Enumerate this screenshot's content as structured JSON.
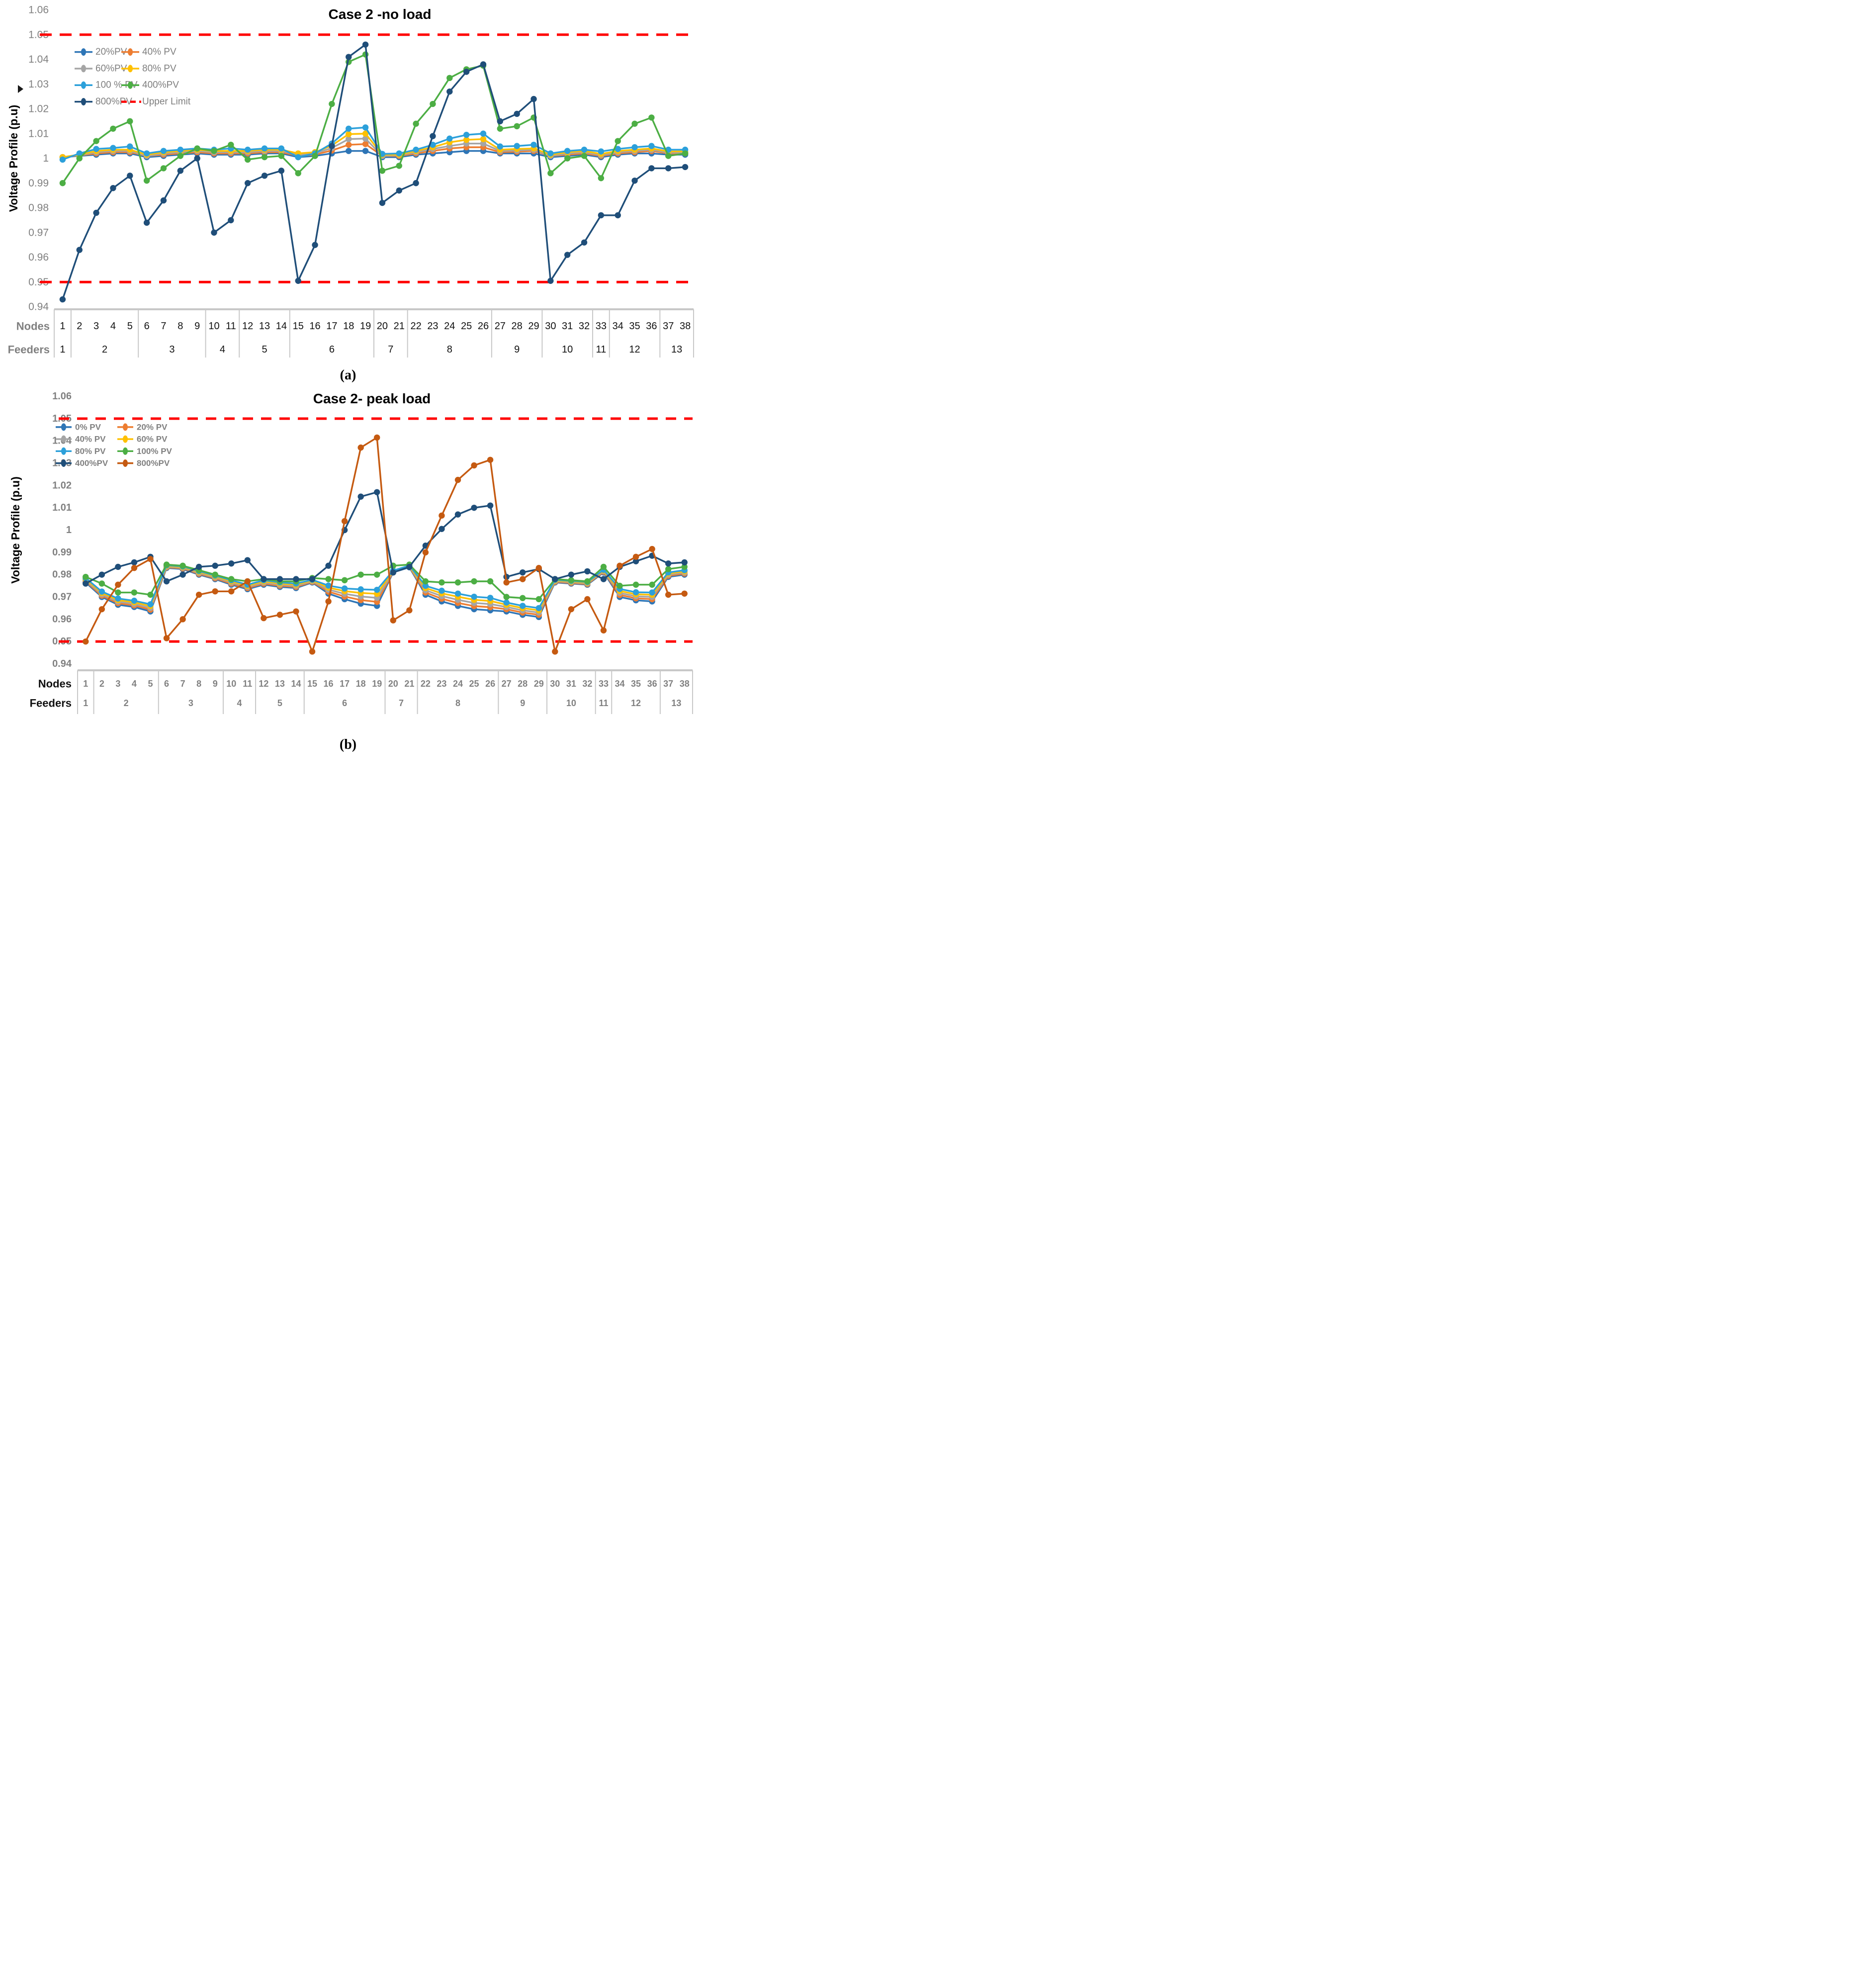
{
  "captions": {
    "a": "(a)",
    "b": "(b)"
  },
  "chart_data": [
    {
      "id": "case2-no-load",
      "type": "line",
      "title": "Case 2 -no load",
      "y_axis_label": "Voltage Profile (p.u)",
      "nodes_row_label": "Nodes",
      "feeders_row_label": "Feeders",
      "ylim": [
        0.94,
        1.06
      ],
      "y_ticks": [
        "1.06",
        "1.05",
        "1.04",
        "1.03",
        "1.02",
        "1.01",
        "1",
        "0.99",
        "0.98",
        "0.97",
        "0.96",
        "0.95",
        "0.94"
      ],
      "upper_limit": {
        "value": 1.05,
        "label": "Upper Limit",
        "color": "#FF0000"
      },
      "lower_limit": {
        "value": 0.95,
        "color": "#FF0000"
      },
      "legend_position": "top-left-two-columns",
      "grid": false,
      "categories": [
        1,
        2,
        3,
        4,
        5,
        6,
        7,
        8,
        9,
        10,
        11,
        12,
        13,
        14,
        15,
        16,
        17,
        18,
        19,
        20,
        21,
        22,
        23,
        24,
        25,
        26,
        27,
        28,
        29,
        30,
        31,
        32,
        33,
        34,
        35,
        36,
        37,
        38
      ],
      "feeders": [
        {
          "label": "1",
          "nodes": [
            1,
            1
          ]
        },
        {
          "label": "2",
          "nodes": [
            2,
            5
          ]
        },
        {
          "label": "3",
          "nodes": [
            6,
            9
          ]
        },
        {
          "label": "4",
          "nodes": [
            10,
            11
          ]
        },
        {
          "label": "5",
          "nodes": [
            12,
            14
          ]
        },
        {
          "label": "6",
          "nodes": [
            15,
            19
          ]
        },
        {
          "label": "7",
          "nodes": [
            20,
            21
          ]
        },
        {
          "label": "8",
          "nodes": [
            22,
            26
          ]
        },
        {
          "label": "9",
          "nodes": [
            27,
            29
          ]
        },
        {
          "label": "10",
          "nodes": [
            30,
            32
          ]
        },
        {
          "label": "11",
          "nodes": [
            33,
            33
          ]
        },
        {
          "label": "12",
          "nodes": [
            34,
            36
          ]
        },
        {
          "label": "13",
          "nodes": [
            37,
            38
          ]
        }
      ],
      "series": [
        {
          "name": "20%PV",
          "color": "#2E75B6",
          "values": [
            1.0005,
            1.001,
            1.0015,
            1.002,
            1.002,
            1.0005,
            1.001,
            1.0015,
            1.002,
            1.0015,
            1.0015,
            1.0015,
            1.002,
            1.002,
            1.0005,
            1.001,
            1.002,
            1.003,
            1.003,
            1.0005,
            1.0005,
            1.0015,
            1.002,
            1.0025,
            1.003,
            1.003,
            1.002,
            1.002,
            1.002,
            1.0005,
            1.001,
            1.0015,
            1.0005,
            1.0015,
            1.002,
            1.002,
            1.0015,
            1.0015
          ]
        },
        {
          "name": "40% PV",
          "color": "#ED7D31",
          "values": [
            1.0005,
            1.0012,
            1.002,
            1.0025,
            1.0025,
            1.001,
            1.0015,
            1.002,
            1.0025,
            1.002,
            1.002,
            1.002,
            1.0025,
            1.0025,
            1.001,
            1.0015,
            1.0032,
            1.0055,
            1.0058,
            1.001,
            1.001,
            1.002,
            1.003,
            1.004,
            1.0045,
            1.0045,
            1.0025,
            1.0027,
            1.003,
            1.001,
            1.0015,
            1.002,
            1.001,
            1.002,
            1.0025,
            1.003,
            1.002,
            1.002
          ]
        },
        {
          "name": "60%PV",
          "color": "#A5A5A5",
          "values": [
            1.0005,
            1.0013,
            1.0025,
            1.003,
            1.003,
            1.001,
            1.002,
            1.0025,
            1.003,
            1.0025,
            1.0025,
            1.0025,
            1.003,
            1.003,
            1.0015,
            1.002,
            1.0042,
            1.0078,
            1.008,
            1.001,
            1.0013,
            1.0025,
            1.0038,
            1.005,
            1.006,
            1.006,
            1.003,
            1.0032,
            1.0035,
            1.001,
            1.002,
            1.0025,
            1.0013,
            1.0025,
            1.003,
            1.0035,
            1.0023,
            1.0023
          ]
        },
        {
          "name": "80% PV",
          "color": "#FFC000",
          "values": [
            1.0005,
            1.0015,
            1.003,
            1.0035,
            1.0035,
            1.0015,
            1.0025,
            1.003,
            1.0035,
            1.003,
            1.003,
            1.003,
            1.0035,
            1.0035,
            1.002,
            1.0025,
            1.0052,
            1.0098,
            1.01,
            1.0015,
            1.0015,
            1.003,
            1.0045,
            1.0065,
            1.0075,
            1.0078,
            1.0035,
            1.0038,
            1.004,
            1.0015,
            1.0025,
            1.003,
            1.0018,
            1.003,
            1.0035,
            1.004,
            1.0028,
            1.0028
          ]
        },
        {
          "name": "100 % PV",
          "color": "#2CA0DA",
          "values": [
            0.9995,
            1.002,
            1.0038,
            1.0042,
            1.0048,
            1.002,
            1.003,
            1.0035,
            1.004,
            1.0035,
            1.004,
            1.0035,
            1.004,
            1.004,
            1.0005,
            1.002,
            1.006,
            1.012,
            1.0125,
            1.0018,
            1.002,
            1.0035,
            1.0055,
            1.008,
            1.0095,
            1.01,
            1.0048,
            1.005,
            1.0055,
            1.002,
            1.003,
            1.0035,
            1.0028,
            1.0038,
            1.0045,
            1.005,
            1.0035,
            1.0035
          ]
        },
        {
          "name": "400%PV",
          "color": "#4CAE44",
          "values": [
            0.99,
            1.0,
            1.007,
            1.012,
            1.015,
            0.991,
            0.996,
            1.001,
            1.004,
            1.003,
            1.0055,
            0.9995,
            1.0005,
            1.001,
            0.994,
            1.001,
            1.022,
            1.039,
            1.042,
            0.995,
            0.997,
            1.014,
            1.022,
            1.0325,
            1.036,
            1.0375,
            1.012,
            1.013,
            1.0165,
            0.994,
            1.0,
            1.001,
            0.992,
            1.007,
            1.014,
            1.0165,
            1.001,
            1.002
          ]
        },
        {
          "name": "800%PV",
          "color": "#1F4E79",
          "values": [
            0.943,
            0.963,
            0.978,
            0.988,
            0.993,
            0.974,
            0.983,
            0.995,
            1.0,
            0.97,
            0.975,
            0.99,
            0.993,
            0.995,
            0.9505,
            0.965,
            1.005,
            1.041,
            1.046,
            0.982,
            0.987,
            0.99,
            1.009,
            1.027,
            1.035,
            1.038,
            1.015,
            1.018,
            1.024,
            0.9505,
            0.961,
            0.966,
            0.977,
            0.977,
            0.991,
            0.996,
            0.996,
            0.9965
          ]
        }
      ]
    },
    {
      "id": "case2-peak-load",
      "type": "line",
      "title": "Case 2- peak load",
      "y_axis_label": "Voltage Profile (p.u)",
      "nodes_row_label": "Nodes",
      "feeders_row_label": "Feeders",
      "ylim": [
        0.94,
        1.06
      ],
      "y_ticks": [
        "1.06",
        "1.05",
        "1.04",
        "1.03",
        "1.02",
        "1.01",
        "1",
        "0.99",
        "0.98",
        "0.97",
        "0.96",
        "0.95",
        "0.94"
      ],
      "upper_limit": {
        "value": 1.05,
        "color": "#FF0000"
      },
      "lower_limit": {
        "value": 0.95,
        "color": "#FF0000"
      },
      "legend_position": "top-left-two-columns",
      "grid": false,
      "categories": [
        1,
        2,
        3,
        4,
        5,
        6,
        7,
        8,
        9,
        10,
        11,
        12,
        13,
        14,
        15,
        16,
        17,
        18,
        19,
        20,
        21,
        22,
        23,
        24,
        25,
        26,
        27,
        28,
        29,
        30,
        31,
        32,
        33,
        34,
        35,
        36,
        37,
        38
      ],
      "feeders": [
        {
          "label": "1",
          "nodes": [
            1,
            1
          ]
        },
        {
          "label": "2",
          "nodes": [
            2,
            5
          ]
        },
        {
          "label": "3",
          "nodes": [
            6,
            9
          ]
        },
        {
          "label": "4",
          "nodes": [
            10,
            11
          ]
        },
        {
          "label": "5",
          "nodes": [
            12,
            14
          ]
        },
        {
          "label": "6",
          "nodes": [
            15,
            19
          ]
        },
        {
          "label": "7",
          "nodes": [
            20,
            21
          ]
        },
        {
          "label": "8",
          "nodes": [
            22,
            26
          ]
        },
        {
          "label": "9",
          "nodes": [
            27,
            29
          ]
        },
        {
          "label": "10",
          "nodes": [
            30,
            32
          ]
        },
        {
          "label": "11",
          "nodes": [
            33,
            33
          ]
        },
        {
          "label": "12",
          "nodes": [
            34,
            36
          ]
        },
        {
          "label": "13",
          "nodes": [
            37,
            38
          ]
        }
      ],
      "series": [
        {
          "name": "0% PV",
          "color": "#2E75B6",
          "values": [
            0.9765,
            0.97,
            0.9665,
            0.9655,
            0.9635,
            0.983,
            0.9825,
            0.98,
            0.978,
            0.9755,
            0.9735,
            0.9755,
            0.9745,
            0.974,
            0.9765,
            0.9715,
            0.969,
            0.967,
            0.966,
            0.981,
            0.9833,
            0.971,
            0.968,
            0.966,
            0.9645,
            0.964,
            0.9635,
            0.962,
            0.961,
            0.9765,
            0.976,
            0.9755,
            0.981,
            0.97,
            0.9685,
            0.968,
            0.979,
            0.98
          ]
        },
        {
          "name": "20% PV",
          "color": "#ED7D31",
          "values": [
            0.977,
            0.9706,
            0.9672,
            0.9662,
            0.9643,
            0.9833,
            0.9828,
            0.9804,
            0.9784,
            0.976,
            0.974,
            0.976,
            0.975,
            0.9745,
            0.9768,
            0.9724,
            0.9702,
            0.9686,
            0.9678,
            0.9812,
            0.9835,
            0.972,
            0.9692,
            0.9673,
            0.9659,
            0.9654,
            0.9645,
            0.963,
            0.962,
            0.9768,
            0.9763,
            0.9758,
            0.9813,
            0.9709,
            0.9694,
            0.969,
            0.9795,
            0.9805
          ]
        },
        {
          "name": "40% PV",
          "color": "#A5A5A5",
          "values": [
            0.9775,
            0.9712,
            0.9679,
            0.9669,
            0.9651,
            0.9836,
            0.9831,
            0.9808,
            0.9788,
            0.9765,
            0.9745,
            0.9765,
            0.9755,
            0.975,
            0.9771,
            0.9733,
            0.9714,
            0.9702,
            0.9696,
            0.9814,
            0.9837,
            0.973,
            0.9704,
            0.9687,
            0.9673,
            0.9668,
            0.9655,
            0.964,
            0.963,
            0.9771,
            0.9766,
            0.9761,
            0.9816,
            0.9718,
            0.9703,
            0.97,
            0.98,
            0.981
          ]
        },
        {
          "name": "60% PV",
          "color": "#FFC000",
          "values": [
            0.978,
            0.9718,
            0.9686,
            0.9676,
            0.9659,
            0.9839,
            0.9834,
            0.9812,
            0.9792,
            0.977,
            0.975,
            0.977,
            0.976,
            0.9755,
            0.9774,
            0.9742,
            0.9726,
            0.9718,
            0.9714,
            0.9816,
            0.9839,
            0.974,
            0.9716,
            0.9701,
            0.9687,
            0.9682,
            0.9665,
            0.965,
            0.964,
            0.9774,
            0.9769,
            0.9764,
            0.9819,
            0.9727,
            0.9712,
            0.971,
            0.9805,
            0.9815
          ]
        },
        {
          "name": "80% PV",
          "color": "#2CA0DA",
          "values": [
            0.9785,
            0.9724,
            0.9693,
            0.9683,
            0.9667,
            0.9842,
            0.9837,
            0.9816,
            0.9796,
            0.9775,
            0.9755,
            0.9775,
            0.9765,
            0.976,
            0.9777,
            0.9751,
            0.9738,
            0.9734,
            0.9732,
            0.9818,
            0.9841,
            0.975,
            0.9728,
            0.9715,
            0.9701,
            0.9696,
            0.9675,
            0.966,
            0.965,
            0.9777,
            0.9772,
            0.9767,
            0.9822,
            0.9736,
            0.9721,
            0.972,
            0.981,
            0.982
          ]
        },
        {
          "name": "100% PV",
          "color": "#4CAE44",
          "values": [
            0.979,
            0.976,
            0.972,
            0.972,
            0.971,
            0.9845,
            0.984,
            0.982,
            0.98,
            0.978,
            0.977,
            0.978,
            0.977,
            0.977,
            0.9785,
            0.978,
            0.9775,
            0.98,
            0.98,
            0.984,
            0.9845,
            0.977,
            0.9765,
            0.9765,
            0.977,
            0.977,
            0.97,
            0.9695,
            0.969,
            0.978,
            0.9775,
            0.977,
            0.9835,
            0.975,
            0.9755,
            0.9755,
            0.9825,
            0.9835
          ]
        },
        {
          "name": "400%PV",
          "color": "#1F4E79",
          "values": [
            0.976,
            0.98,
            0.9835,
            0.9855,
            0.988,
            0.977,
            0.98,
            0.9835,
            0.984,
            0.985,
            0.9865,
            0.978,
            0.978,
            0.978,
            0.978,
            0.984,
            1.0,
            1.015,
            1.017,
            0.981,
            0.9835,
            0.993,
            1.0005,
            1.007,
            1.01,
            1.011,
            0.979,
            0.981,
            0.9825,
            0.978,
            0.98,
            0.9815,
            0.978,
            0.9835,
            0.986,
            0.9885,
            0.985,
            0.9855
          ]
        },
        {
          "name": "800%PV",
          "color": "#C55A11",
          "values": [
            0.95,
            0.9645,
            0.9755,
            0.983,
            0.987,
            0.9515,
            0.96,
            0.971,
            0.9725,
            0.9725,
            0.977,
            0.9605,
            0.962,
            0.9635,
            0.9455,
            0.968,
            1.004,
            1.037,
            1.0415,
            0.9595,
            0.964,
            0.99,
            1.0065,
            1.0225,
            1.029,
            1.0315,
            0.9765,
            0.978,
            0.983,
            0.9455,
            0.9645,
            0.969,
            0.955,
            0.984,
            0.988,
            0.9915,
            0.971,
            0.9715
          ]
        }
      ]
    }
  ]
}
